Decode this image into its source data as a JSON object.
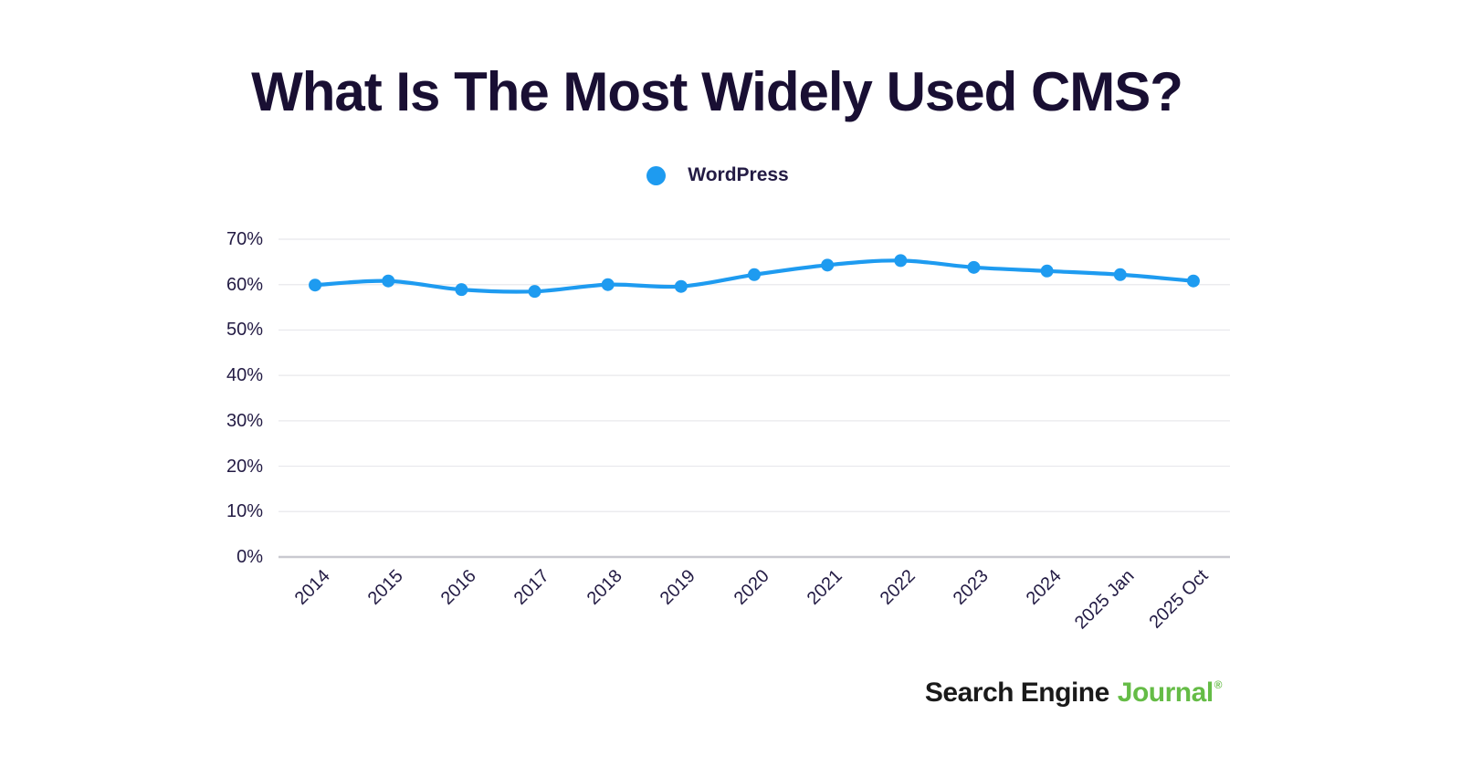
{
  "colors": {
    "background": "#ffffff",
    "title": "#190f33",
    "text": "#231b44",
    "line": "#1e9bf0",
    "grid": "#e8e8ec",
    "axis": "#c9c9d0",
    "brand_black": "#1a1a1a",
    "brand_green": "#65bc46"
  },
  "title": {
    "text": "What Is The Most Widely Used CMS?"
  },
  "legend": {
    "items": [
      {
        "label": "WordPress",
        "color": "#1e9bf0"
      }
    ]
  },
  "chart_data": {
    "type": "line",
    "title": "What Is The Most Widely Used CMS?",
    "categories": [
      "2014",
      "2015",
      "2016",
      "2017",
      "2018",
      "2019",
      "2020",
      "2021",
      "2022",
      "2023",
      "2024",
      "2025 Jan",
      "2025 Oct"
    ],
    "series": [
      {
        "name": "WordPress",
        "color": "#1e9bf0",
        "values": [
          59.9,
          60.8,
          58.9,
          58.5,
          60.0,
          59.6,
          62.2,
          64.3,
          65.3,
          63.8,
          63.0,
          62.2,
          60.8
        ]
      }
    ],
    "xlabel": "",
    "ylabel": "",
    "ylim": [
      0,
      70
    ],
    "y_ticks": [
      "0%",
      "10%",
      "20%",
      "30%",
      "40%",
      "50%",
      "60%",
      "70%"
    ],
    "grid": true,
    "legend_position": "top",
    "marker": "circle",
    "line_smoothing": true
  },
  "footer": {
    "brand_black": "Search Engine",
    "brand_green": "Journal",
    "registered": "®"
  }
}
